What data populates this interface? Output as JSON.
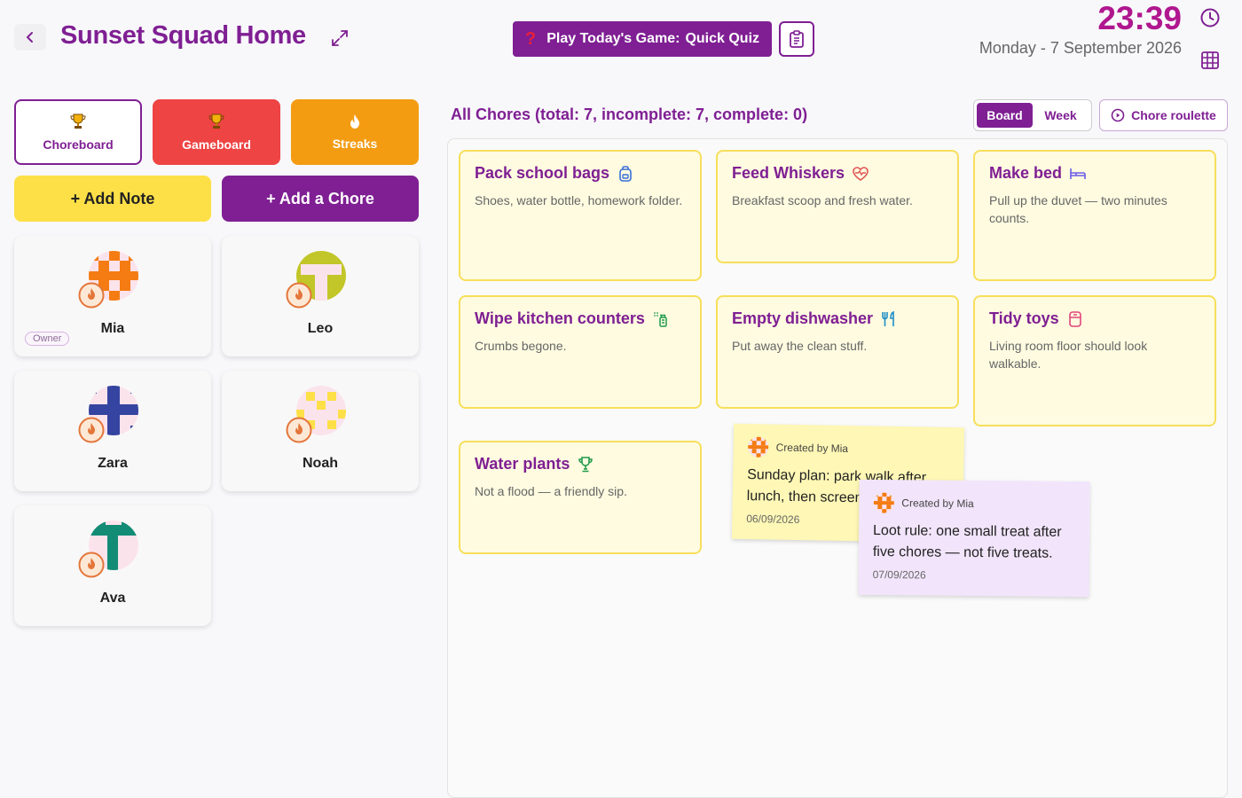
{
  "header": {
    "title": "Sunset Squad Home",
    "play_label": "Play Today's Game:",
    "play_game": "Quick Quiz",
    "time": "23:39",
    "date": "Monday - 7 September 2026"
  },
  "tabs": [
    {
      "label": "Choreboard",
      "icon": "trophy-icon"
    },
    {
      "label": "Gameboard",
      "icon": "trophy-icon"
    },
    {
      "label": "Streaks",
      "icon": "flame-icon"
    }
  ],
  "actions": {
    "add_note": "+ Add Note",
    "add_chore": "+ Add a Chore"
  },
  "members": [
    {
      "name": "Mia",
      "badge": "Owner"
    },
    {
      "name": "Leo"
    },
    {
      "name": "Zara"
    },
    {
      "name": "Noah"
    },
    {
      "name": "Ava"
    }
  ],
  "chores_heading": "All Chores (total: 7, incomplete: 7, complete: 0)",
  "view_toggle": {
    "board": "Board",
    "week": "Week"
  },
  "roulette_label": "Chore roulette",
  "chores": [
    {
      "title": "Pack school bags",
      "desc": "Shoes, water bottle, homework folder.",
      "icon": "backpack-icon"
    },
    {
      "title": "Feed Whiskers",
      "desc": "Breakfast scoop and fresh water.",
      "icon": "heart-pulse-icon"
    },
    {
      "title": "Make bed",
      "desc": "Pull up the duvet — two minutes counts.",
      "icon": "bed-icon"
    },
    {
      "title": "Wipe kitchen counters",
      "desc": "Crumbs begone.",
      "icon": "spray-bottle-icon"
    },
    {
      "title": "Empty dishwasher",
      "desc": "Put away the clean stuff.",
      "icon": "utensils-icon"
    },
    {
      "title": "Tidy toys",
      "desc": "Living room floor should look walkable.",
      "icon": "toy-box-icon"
    },
    {
      "title": "Water plants",
      "desc": "Not a flood — a friendly sip.",
      "icon": "trophy-icon"
    }
  ],
  "notes": [
    {
      "by": "Created by Mia",
      "text": "Sunday plan: park walk after lunch, then screen time.",
      "date": "06/09/2026"
    },
    {
      "by": "Created by Mia",
      "text": "Loot rule: one small treat after five chores — not five treats.",
      "date": "07/09/2026"
    }
  ],
  "colors": {
    "brand_purple": "#7f1f93",
    "clock_magenta": "#b0178f",
    "gameboard_red": "#ee4444",
    "streaks_orange": "#f39c12",
    "note_yellow": "#fde047",
    "chore_card_bg": "#fefbe0",
    "chore_card_border": "#f7df5b"
  }
}
